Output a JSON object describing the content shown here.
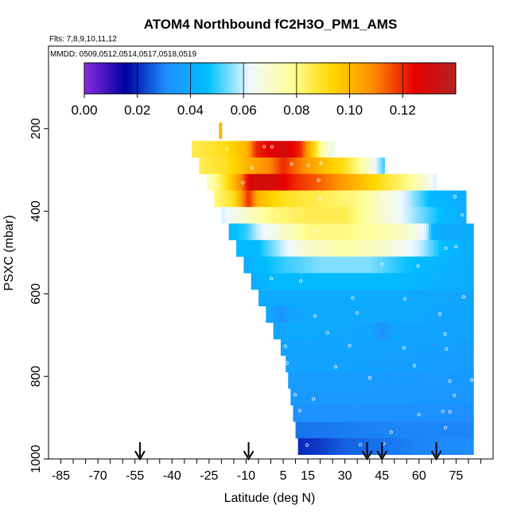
{
  "chart_data": {
    "type": "heatmap",
    "title": "ATOM4 Northbound fC2H3O_PM1_AMS",
    "flights_note": "Flts: 7,8,9,10,11,12",
    "dates_note": "MMDD: 0509,0512,0514,0517,0518,0519",
    "xlabel": "Latitude (deg N)",
    "ylabel": "PSXC (mbar)",
    "xlim": [
      -90,
      90
    ],
    "ylim": [
      1000,
      0
    ],
    "xticks": [
      -85,
      -70,
      -55,
      -40,
      -25,
      -10,
      5,
      15,
      30,
      45,
      60,
      75
    ],
    "yticks": [
      200,
      400,
      600,
      800,
      1000
    ],
    "colorbar": {
      "range": [
        0,
        0.14
      ],
      "ticks": [
        "0.00",
        "0.02",
        "0.04",
        "0.06",
        "0.08",
        "0.10",
        "0.12"
      ],
      "tick_values": [
        0,
        0.02,
        0.04,
        0.06,
        0.08,
        0.1,
        0.12
      ],
      "colors": [
        "#8a2be2",
        "#0000a0",
        "#1e90ff",
        "#00bfff",
        "#f0f8ff",
        "#ffff99",
        "#ffd700",
        "#ff8c00",
        "#e60000",
        "#b22222"
      ]
    },
    "arrows_lat": [
      -53,
      -9,
      39,
      45,
      67
    ],
    "bands": [
      {
        "p": 250,
        "lat": [
          -32,
          26
        ],
        "stops": [
          [
            -32,
            0.085
          ],
          [
            -20,
            0.09
          ],
          [
            -10,
            0.1
          ],
          [
            -6,
            0.12
          ],
          [
            5,
            0.13
          ],
          [
            12,
            0.12
          ],
          [
            18,
            0.09
          ],
          [
            22,
            0.07
          ],
          [
            26,
            0.065
          ]
        ]
      },
      {
        "p": 290,
        "lat": [
          -29,
          46
        ],
        "stops": [
          [
            -29,
            0.085
          ],
          [
            -18,
            0.09
          ],
          [
            -10,
            0.1
          ],
          [
            0,
            0.11
          ],
          [
            5,
            0.12
          ],
          [
            12,
            0.11
          ],
          [
            20,
            0.1
          ],
          [
            30,
            0.09
          ],
          [
            40,
            0.07
          ],
          [
            46,
            0.05
          ]
        ]
      },
      {
        "p": 330,
        "lat": [
          -26,
          67
        ],
        "stops": [
          [
            -26,
            0.07
          ],
          [
            -18,
            0.09
          ],
          [
            -12,
            0.11
          ],
          [
            -8,
            0.13
          ],
          [
            0,
            0.13
          ],
          [
            10,
            0.12
          ],
          [
            25,
            0.11
          ],
          [
            35,
            0.1
          ],
          [
            45,
            0.09
          ],
          [
            55,
            0.08
          ],
          [
            62,
            0.07
          ],
          [
            67,
            0.06
          ]
        ]
      },
      {
        "p": 370,
        "lat": [
          -23,
          79
        ],
        "stops": [
          [
            -23,
            0.08
          ],
          [
            -15,
            0.09
          ],
          [
            -9,
            0.12
          ],
          [
            -5,
            0.1
          ],
          [
            5,
            0.09
          ],
          [
            20,
            0.085
          ],
          [
            35,
            0.08
          ],
          [
            45,
            0.07
          ],
          [
            55,
            0.06
          ],
          [
            65,
            0.045
          ],
          [
            79,
            0.04
          ]
        ]
      },
      {
        "p": 410,
        "lat": [
          -20,
          79
        ],
        "stops": [
          [
            -20,
            0.06
          ],
          [
            -10,
            0.07
          ],
          [
            0,
            0.08
          ],
          [
            15,
            0.085
          ],
          [
            30,
            0.085
          ],
          [
            40,
            0.075
          ],
          [
            50,
            0.065
          ],
          [
            60,
            0.055
          ],
          [
            70,
            0.045
          ],
          [
            79,
            0.04
          ]
        ]
      },
      {
        "p": 450,
        "lat": [
          -17,
          82
        ],
        "stops": [
          [
            -17,
            0.045
          ],
          [
            -10,
            0.05
          ],
          [
            -5,
            0.06
          ],
          [
            5,
            0.07
          ],
          [
            15,
            0.08
          ],
          [
            30,
            0.08
          ],
          [
            45,
            0.075
          ],
          [
            55,
            0.07
          ],
          [
            63,
            0.06
          ],
          [
            66,
            0.04
          ],
          [
            82,
            0.04
          ]
        ]
      },
      {
        "p": 490,
        "lat": [
          -14,
          82
        ],
        "stops": [
          [
            -14,
            0.045
          ],
          [
            -6,
            0.045
          ],
          [
            5,
            0.06
          ],
          [
            15,
            0.07
          ],
          [
            30,
            0.075
          ],
          [
            45,
            0.07
          ],
          [
            60,
            0.06
          ],
          [
            70,
            0.045
          ],
          [
            82,
            0.04
          ]
        ]
      },
      {
        "p": 530,
        "lat": [
          -11,
          82
        ],
        "stops": [
          [
            -11,
            0.04
          ],
          [
            -5,
            0.045
          ],
          [
            5,
            0.05
          ],
          [
            20,
            0.055
          ],
          [
            40,
            0.055
          ],
          [
            60,
            0.045
          ],
          [
            82,
            0.04
          ]
        ]
      },
      {
        "p": 570,
        "lat": [
          -8,
          82
        ],
        "stops": [
          [
            -8,
            0.04
          ],
          [
            0,
            0.045
          ],
          [
            20,
            0.045
          ],
          [
            50,
            0.045
          ],
          [
            82,
            0.04
          ]
        ]
      },
      {
        "p": 610,
        "lat": [
          -5,
          82
        ],
        "stops": [
          [
            -5,
            0.04
          ],
          [
            10,
            0.04
          ],
          [
            50,
            0.04
          ],
          [
            82,
            0.038
          ]
        ]
      },
      {
        "p": 650,
        "lat": [
          -2,
          82
        ],
        "stops": [
          [
            -2,
            0.04
          ],
          [
            5,
            0.032
          ],
          [
            8,
            0.038
          ],
          [
            30,
            0.04
          ],
          [
            82,
            0.038
          ]
        ]
      },
      {
        "p": 690,
        "lat": [
          1,
          82
        ],
        "stops": [
          [
            1,
            0.038
          ],
          [
            10,
            0.04
          ],
          [
            40,
            0.038
          ],
          [
            45,
            0.032
          ],
          [
            50,
            0.038
          ],
          [
            82,
            0.037
          ]
        ]
      },
      {
        "p": 730,
        "lat": [
          4,
          82
        ],
        "stops": [
          [
            4,
            0.038
          ],
          [
            30,
            0.038
          ],
          [
            82,
            0.036
          ]
        ]
      },
      {
        "p": 770,
        "lat": [
          6,
          82
        ],
        "stops": [
          [
            6,
            0.037
          ],
          [
            30,
            0.037
          ],
          [
            82,
            0.035
          ]
        ]
      },
      {
        "p": 810,
        "lat": [
          7,
          82
        ],
        "stops": [
          [
            7,
            0.035
          ],
          [
            40,
            0.035
          ],
          [
            82,
            0.034
          ]
        ]
      },
      {
        "p": 850,
        "lat": [
          8,
          82
        ],
        "stops": [
          [
            8,
            0.034
          ],
          [
            40,
            0.034
          ],
          [
            82,
            0.033
          ]
        ]
      },
      {
        "p": 890,
        "lat": [
          9,
          82
        ],
        "stops": [
          [
            9,
            0.032
          ],
          [
            40,
            0.032
          ],
          [
            82,
            0.031
          ]
        ]
      },
      {
        "p": 930,
        "lat": [
          10,
          82
        ],
        "stops": [
          [
            10,
            0.028
          ],
          [
            50,
            0.03
          ],
          [
            82,
            0.03
          ]
        ]
      },
      {
        "p": 970,
        "lat": [
          11,
          82
        ],
        "stops": [
          [
            11,
            0.02
          ],
          [
            20,
            0.022
          ],
          [
            30,
            0.026
          ],
          [
            45,
            0.028
          ],
          [
            60,
            0.03
          ],
          [
            82,
            0.031
          ]
        ]
      }
    ],
    "spike": {
      "lat": -21,
      "p_range": [
        185,
        225
      ],
      "value": 0.1
    }
  }
}
